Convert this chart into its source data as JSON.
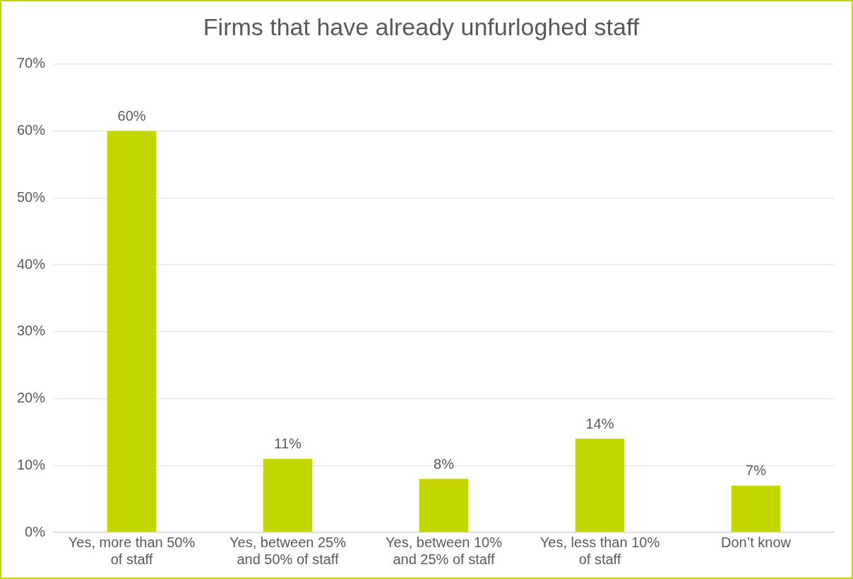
{
  "chart_data": {
    "type": "bar",
    "title": "Firms that have already unfurloghed staff",
    "categories": [
      "Yes, more than 50% of staff",
      "Yes, between 25% and 50% of staff",
      "Yes, between 10% and 25% of staff",
      "Yes, less than 10% of staff",
      "Don’t know"
    ],
    "values": [
      60,
      11,
      8,
      14,
      7
    ],
    "value_labels": [
      "60%",
      "11%",
      "8%",
      "14%",
      "7%"
    ],
    "color": "#c4d600",
    "ylim": [
      0,
      70
    ],
    "yticks": [
      {
        "value": 0,
        "label": "0%"
      },
      {
        "value": 10,
        "label": "10%"
      },
      {
        "value": 20,
        "label": "20%"
      },
      {
        "value": 30,
        "label": "30%"
      },
      {
        "value": 40,
        "label": "40%"
      },
      {
        "value": 50,
        "label": "50%"
      },
      {
        "value": 60,
        "label": "60%"
      },
      {
        "value": 70,
        "label": "70%"
      }
    ],
    "grid": "y",
    "legend": false
  }
}
